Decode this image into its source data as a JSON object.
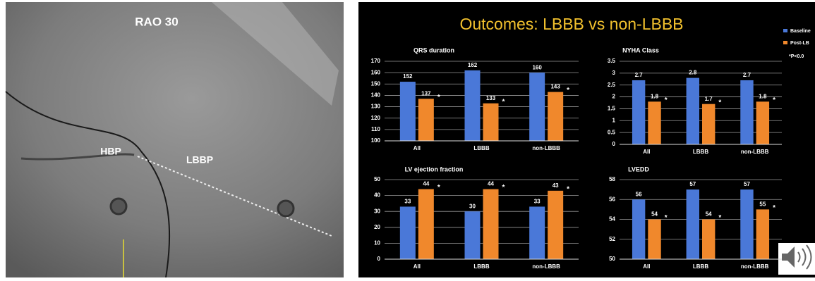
{
  "image": {
    "view": "RAO 30",
    "labels": [
      "HBP",
      "LBBP"
    ]
  },
  "slide": {
    "title": "Outcomes: LBBB vs non-LBBB",
    "legend_note": "*P<0.0"
  },
  "chart_data": [
    {
      "type": "bar",
      "title": "QRS duration",
      "categories": [
        "All",
        "LBBB",
        "non-LBBB"
      ],
      "series": [
        {
          "name": "Baseline",
          "color": "#4a78d8",
          "values": [
            152,
            162,
            160
          ]
        },
        {
          "name": "Post-LB",
          "color": "#f0882c",
          "values": [
            137,
            133,
            143
          ],
          "significance": [
            "*",
            "*",
            "*"
          ]
        }
      ],
      "ylim": [
        100,
        170
      ],
      "yticks": [
        100,
        110,
        120,
        130,
        140,
        150,
        160,
        170
      ],
      "grid": true
    },
    {
      "type": "bar",
      "title": "NYHA Class",
      "categories": [
        "All",
        "LBBB",
        "non-LBBB"
      ],
      "series": [
        {
          "color": "#4a78d8",
          "values": [
            2.7,
            2.8,
            2.7
          ]
        },
        {
          "color": "#f0882c",
          "values": [
            1.8,
            1.7,
            1.8
          ],
          "significance": [
            "*",
            "*",
            "*"
          ]
        }
      ],
      "ylim": [
        0,
        3.5
      ],
      "yticks": [
        0,
        0.5,
        1,
        1.5,
        2,
        2.5,
        3,
        3.5
      ],
      "grid": true
    },
    {
      "type": "bar",
      "title": "LV ejection fraction",
      "categories": [
        "All",
        "LBBB",
        "non-LBBB"
      ],
      "series": [
        {
          "color": "#4a78d8",
          "values": [
            33,
            30,
            33
          ]
        },
        {
          "color": "#f0882c",
          "values": [
            44,
            44,
            43
          ],
          "significance": [
            "*",
            "*",
            "*"
          ]
        }
      ],
      "ylim": [
        0,
        50
      ],
      "yticks": [
        0,
        10,
        20,
        30,
        40,
        50
      ],
      "grid": true
    },
    {
      "type": "bar",
      "title": "LVEDD",
      "categories": [
        "All",
        "LBBB",
        "non-LBBB"
      ],
      "series": [
        {
          "color": "#4a78d8",
          "values": [
            56,
            57,
            57
          ]
        },
        {
          "color": "#f0882c",
          "values": [
            54,
            54,
            55
          ],
          "significance": [
            "*",
            "*",
            "*"
          ]
        }
      ],
      "ylim": [
        50,
        58
      ],
      "yticks": [
        50,
        52,
        54,
        56,
        58
      ],
      "grid": true
    }
  ]
}
